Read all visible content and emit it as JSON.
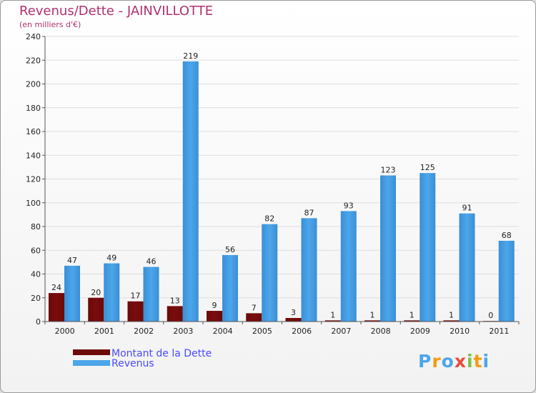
{
  "header": {
    "title": "Revenus/Dette - JAINVILLOTTE",
    "subtitle": "(en milliers d'€)"
  },
  "chart_data": {
    "type": "bar",
    "categories": [
      "2000",
      "2001",
      "2002",
      "2003",
      "2004",
      "2005",
      "2006",
      "2007",
      "2008",
      "2009",
      "2010",
      "2011"
    ],
    "series": [
      {
        "name": "Montant de la Dette",
        "color": "#7a0c0c",
        "values": [
          24,
          20,
          17,
          13,
          9,
          7,
          3,
          1,
          1,
          1,
          1,
          0
        ]
      },
      {
        "name": "Revenus",
        "color": "#4ca6ea",
        "values": [
          47,
          49,
          46,
          219,
          56,
          82,
          87,
          93,
          123,
          125,
          91,
          68
        ]
      }
    ],
    "ylim": [
      0,
      240
    ],
    "yticks": [
      "0",
      "20",
      "40",
      "60",
      "80",
      "100",
      "120",
      "140",
      "160",
      "180",
      "200",
      "220",
      "240"
    ],
    "grid": true,
    "legend_position": "bottom-left"
  },
  "legend": {
    "items": [
      {
        "label": "Montant de la Dette",
        "color": "#6e0a0a"
      },
      {
        "label": "Revenus",
        "color": "#4ca6ea"
      }
    ]
  },
  "logo": {
    "text": "Proxiti",
    "colors": [
      "#4ca6ea",
      "#f39c12",
      "#4ca6ea",
      "#e84c3d",
      "#7bc043",
      "#f39c12",
      "#4ca6ea"
    ]
  }
}
